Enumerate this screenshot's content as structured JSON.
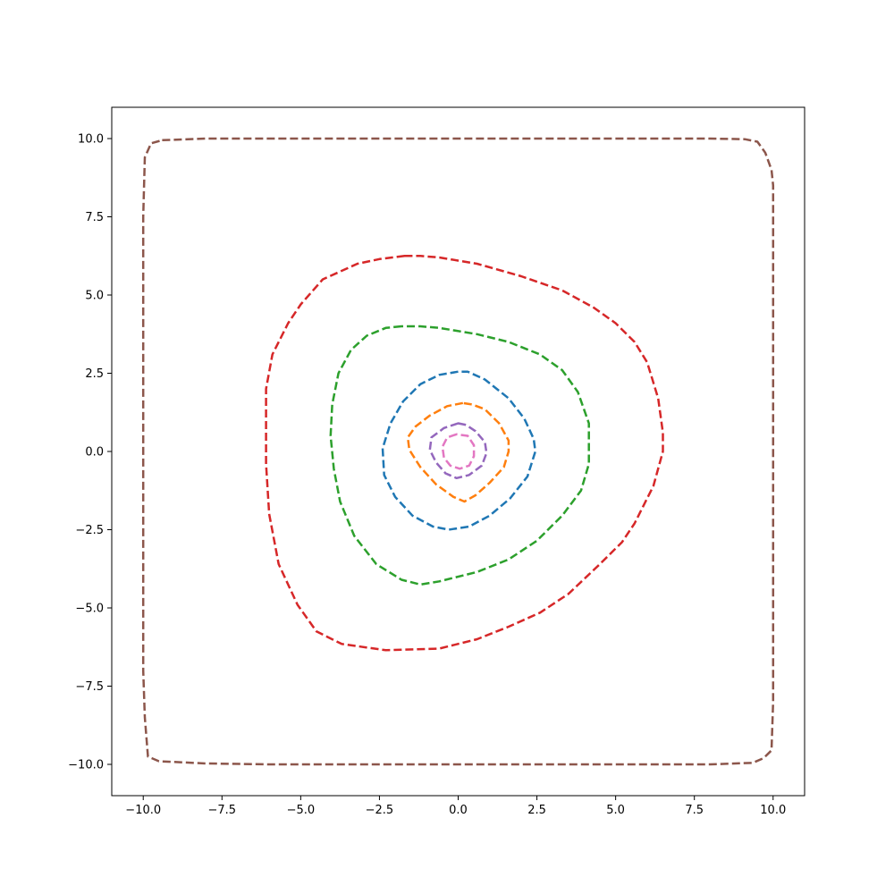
{
  "chart_data": {
    "type": "line",
    "title": "",
    "xlabel": "",
    "ylabel": "",
    "xlim": [
      -11,
      11
    ],
    "ylim": [
      -11,
      11
    ],
    "xticks": [
      -10.0,
      -7.5,
      -5.0,
      -2.5,
      0.0,
      2.5,
      5.0,
      7.5,
      10.0
    ],
    "yticks": [
      -10.0,
      -7.5,
      -5.0,
      -2.5,
      0.0,
      2.5,
      5.0,
      7.5,
      10.0
    ],
    "xtick_labels": [
      "−10.0",
      "−7.5",
      "−5.0",
      "−2.5",
      "0.0",
      "2.5",
      "5.0",
      "7.5",
      "10.0"
    ],
    "ytick_labels": [
      "−10.0",
      "−7.5",
      "−5.0",
      "−2.5",
      "0.0",
      "2.5",
      "5.0",
      "7.5",
      "10.0"
    ],
    "grid": false,
    "line_style": "dashed",
    "series": [
      {
        "color": "#1f77b4",
        "points": [
          [
            0.0,
            2.55
          ],
          [
            -0.6,
            2.45
          ],
          [
            -1.2,
            2.15
          ],
          [
            -1.75,
            1.6
          ],
          [
            -2.15,
            0.9
          ],
          [
            -2.4,
            0.1
          ],
          [
            -2.35,
            -0.75
          ],
          [
            -2.0,
            -1.45
          ],
          [
            -1.45,
            -2.05
          ],
          [
            -0.8,
            -2.4
          ],
          [
            -0.3,
            -2.5
          ],
          [
            0.35,
            -2.4
          ],
          [
            1.0,
            -2.05
          ],
          [
            1.65,
            -1.5
          ],
          [
            2.2,
            -0.8
          ],
          [
            2.45,
            0.0
          ],
          [
            2.4,
            0.4
          ],
          [
            2.1,
            1.05
          ],
          [
            1.6,
            1.7
          ],
          [
            0.85,
            2.3
          ],
          [
            0.3,
            2.55
          ]
        ]
      },
      {
        "color": "#ff7f0e",
        "points": [
          [
            0.15,
            1.55
          ],
          [
            -0.35,
            1.45
          ],
          [
            -0.9,
            1.15
          ],
          [
            -1.35,
            0.8
          ],
          [
            -1.6,
            0.45
          ],
          [
            -1.55,
            0.05
          ],
          [
            -1.2,
            -0.5
          ],
          [
            -0.7,
            -1.05
          ],
          [
            -0.15,
            -1.45
          ],
          [
            0.2,
            -1.6
          ],
          [
            0.55,
            -1.4
          ],
          [
            1.0,
            -1.0
          ],
          [
            1.45,
            -0.5
          ],
          [
            1.6,
            0.0
          ],
          [
            1.6,
            0.35
          ],
          [
            1.3,
            0.9
          ],
          [
            0.85,
            1.35
          ],
          [
            0.45,
            1.5
          ]
        ]
      },
      {
        "color": "#2ca02c",
        "points": [
          [
            -1.8,
            4.0
          ],
          [
            -2.3,
            3.95
          ],
          [
            -2.9,
            3.7
          ],
          [
            -3.4,
            3.25
          ],
          [
            -3.8,
            2.5
          ],
          [
            -4.0,
            1.5
          ],
          [
            -4.05,
            0.5
          ],
          [
            -3.95,
            -0.55
          ],
          [
            -3.75,
            -1.6
          ],
          [
            -3.3,
            -2.7
          ],
          [
            -2.6,
            -3.6
          ],
          [
            -1.8,
            -4.1
          ],
          [
            -1.2,
            -4.25
          ],
          [
            -0.6,
            -4.15
          ],
          [
            0.6,
            -3.85
          ],
          [
            1.6,
            -3.45
          ],
          [
            2.5,
            -2.85
          ],
          [
            3.3,
            -2.05
          ],
          [
            3.9,
            -1.25
          ],
          [
            4.15,
            -0.4
          ],
          [
            4.15,
            0.9
          ],
          [
            3.8,
            1.9
          ],
          [
            3.3,
            2.6
          ],
          [
            2.6,
            3.1
          ],
          [
            1.6,
            3.5
          ],
          [
            0.6,
            3.75
          ],
          [
            -0.6,
            3.95
          ],
          [
            -1.2,
            4.0
          ]
        ]
      },
      {
        "color": "#d62728",
        "points": [
          [
            -1.7,
            6.25
          ],
          [
            -2.5,
            6.15
          ],
          [
            -3.2,
            6.0
          ],
          [
            -4.3,
            5.5
          ],
          [
            -5.0,
            4.7
          ],
          [
            -5.4,
            4.1
          ],
          [
            -5.9,
            3.1
          ],
          [
            -6.1,
            2.0
          ],
          [
            -6.1,
            1.0
          ],
          [
            -6.1,
            -0.4
          ],
          [
            -6.0,
            -2.0
          ],
          [
            -5.7,
            -3.6
          ],
          [
            -5.1,
            -4.9
          ],
          [
            -4.5,
            -5.75
          ],
          [
            -3.7,
            -6.15
          ],
          [
            -2.3,
            -6.35
          ],
          [
            -0.6,
            -6.3
          ],
          [
            0.6,
            -6.0
          ],
          [
            1.6,
            -5.6
          ],
          [
            2.6,
            -5.15
          ],
          [
            3.5,
            -4.55
          ],
          [
            4.5,
            -3.6
          ],
          [
            5.2,
            -2.9
          ],
          [
            5.6,
            -2.3
          ],
          [
            6.2,
            -1.1
          ],
          [
            6.5,
            0.0
          ],
          [
            6.5,
            0.6
          ],
          [
            6.35,
            1.7
          ],
          [
            6.0,
            2.85
          ],
          [
            5.6,
            3.5
          ],
          [
            5.0,
            4.1
          ],
          [
            4.3,
            4.6
          ],
          [
            3.3,
            5.15
          ],
          [
            2.0,
            5.6
          ],
          [
            0.6,
            6.0
          ],
          [
            -0.6,
            6.2
          ],
          [
            -1.2,
            6.25
          ]
        ]
      },
      {
        "color": "#9467bd",
        "points": [
          [
            0.0,
            0.9
          ],
          [
            -0.45,
            0.75
          ],
          [
            -0.85,
            0.45
          ],
          [
            -0.9,
            0.05
          ],
          [
            -0.7,
            -0.35
          ],
          [
            -0.4,
            -0.7
          ],
          [
            -0.05,
            -0.85
          ],
          [
            0.35,
            -0.75
          ],
          [
            0.75,
            -0.45
          ],
          [
            0.9,
            -0.05
          ],
          [
            0.85,
            0.3
          ],
          [
            0.55,
            0.65
          ],
          [
            0.25,
            0.85
          ]
        ]
      },
      {
        "color": "#8c564b",
        "points": [
          [
            -9.4,
            9.95
          ],
          [
            -8.0,
            10.0
          ],
          [
            -6.0,
            10.0
          ],
          [
            -4.0,
            10.0
          ],
          [
            -2.0,
            10.0
          ],
          [
            0.0,
            10.0
          ],
          [
            2.0,
            10.0
          ],
          [
            4.0,
            10.0
          ],
          [
            6.0,
            10.0
          ],
          [
            8.0,
            10.0
          ],
          [
            9.1,
            9.98
          ],
          [
            9.5,
            9.9
          ],
          [
            9.75,
            9.55
          ],
          [
            9.95,
            9.0
          ],
          [
            10.0,
            8.5
          ],
          [
            10.0,
            6.0
          ],
          [
            10.0,
            4.0
          ],
          [
            10.0,
            2.0
          ],
          [
            10.0,
            0.0
          ],
          [
            10.0,
            -2.0
          ],
          [
            10.0,
            -4.0
          ],
          [
            10.0,
            -6.0
          ],
          [
            10.0,
            -8.0
          ],
          [
            9.95,
            -9.55
          ],
          [
            9.7,
            -9.8
          ],
          [
            9.35,
            -9.95
          ],
          [
            8.0,
            -10.0
          ],
          [
            6.0,
            -10.0
          ],
          [
            4.0,
            -10.0
          ],
          [
            2.0,
            -10.0
          ],
          [
            0.0,
            -10.0
          ],
          [
            -2.0,
            -10.0
          ],
          [
            -4.0,
            -10.0
          ],
          [
            -6.0,
            -10.0
          ],
          [
            -8.0,
            -9.97
          ],
          [
            -9.5,
            -9.9
          ],
          [
            -9.85,
            -9.75
          ],
          [
            -9.95,
            -8.5
          ],
          [
            -10.0,
            -7.0
          ],
          [
            -10.0,
            -5.0
          ],
          [
            -10.0,
            -2.5
          ],
          [
            -10.0,
            0.0
          ],
          [
            -10.0,
            2.5
          ],
          [
            -10.0,
            5.0
          ],
          [
            -10.0,
            7.5
          ],
          [
            -9.95,
            9.4
          ],
          [
            -9.75,
            9.85
          ]
        ]
      },
      {
        "color": "#e377c2",
        "points": [
          [
            -0.05,
            0.55
          ],
          [
            -0.35,
            0.45
          ],
          [
            -0.5,
            0.15
          ],
          [
            -0.45,
            -0.2
          ],
          [
            -0.25,
            -0.45
          ],
          [
            0.05,
            -0.55
          ],
          [
            0.35,
            -0.45
          ],
          [
            0.5,
            -0.15
          ],
          [
            0.5,
            0.2
          ],
          [
            0.3,
            0.5
          ]
        ]
      }
    ]
  }
}
